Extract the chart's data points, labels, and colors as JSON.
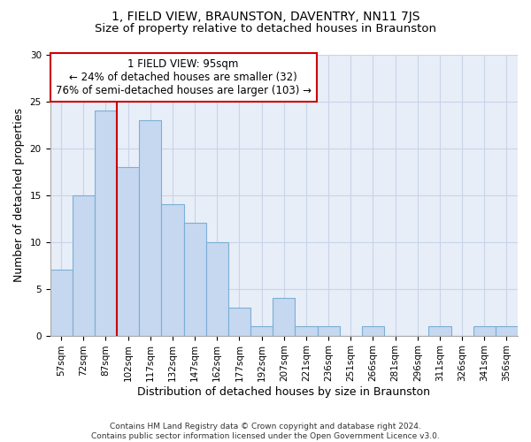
{
  "title": "1, FIELD VIEW, BRAUNSTON, DAVENTRY, NN11 7JS",
  "subtitle": "Size of property relative to detached houses in Braunston",
  "xlabel": "Distribution of detached houses by size in Braunston",
  "ylabel": "Number of detached properties",
  "categories": [
    "57sqm",
    "72sqm",
    "87sqm",
    "102sqm",
    "117sqm",
    "132sqm",
    "147sqm",
    "162sqm",
    "177sqm",
    "192sqm",
    "207sqm",
    "221sqm",
    "236sqm",
    "251sqm",
    "266sqm",
    "281sqm",
    "296sqm",
    "311sqm",
    "326sqm",
    "341sqm",
    "356sqm"
  ],
  "values": [
    7,
    15,
    24,
    18,
    23,
    14,
    12,
    10,
    3,
    1,
    4,
    1,
    1,
    0,
    1,
    0,
    0,
    1,
    0,
    1,
    1
  ],
  "bar_color": "#c5d8f0",
  "bar_edge_color": "#7bafd4",
  "grid_color": "#c8d4e8",
  "background_color": "#e8eef8",
  "redline_x": 2.5,
  "annotation_text": "1 FIELD VIEW: 95sqm\n← 24% of detached houses are smaller (32)\n76% of semi-detached houses are larger (103) →",
  "annotation_box_color": "#ffffff",
  "annotation_box_edge": "#cc0000",
  "ylim": [
    0,
    30
  ],
  "yticks": [
    0,
    5,
    10,
    15,
    20,
    25,
    30
  ],
  "footer": "Contains HM Land Registry data © Crown copyright and database right 2024.\nContains public sector information licensed under the Open Government Licence v3.0.",
  "title_fontsize": 10,
  "subtitle_fontsize": 9.5,
  "ylabel_fontsize": 9,
  "xlabel_fontsize": 9,
  "tick_fontsize": 7.5,
  "annotation_fontsize": 8.5
}
